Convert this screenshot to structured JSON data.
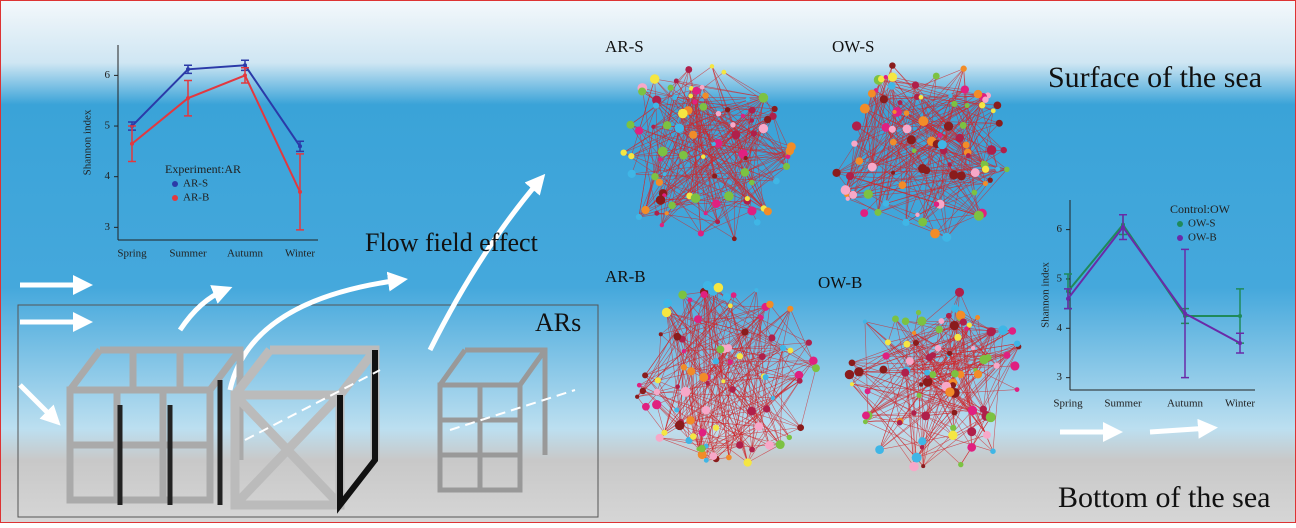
{
  "labels": {
    "surface": "Surface of the sea",
    "bottom": "Bottom of the sea",
    "flow": "Flow field effect",
    "ars": "ARs",
    "networks": [
      "AR-S",
      "OW-S",
      "AR-B",
      "OW-B"
    ]
  },
  "chart_data": [
    {
      "type": "line",
      "legend_title": "Experiment:AR",
      "ylabel": "Shannon index",
      "categories": [
        "Spring",
        "Summer",
        "Autumn",
        "Winter"
      ],
      "ylim": [
        2.75,
        6.6
      ],
      "yticks": [
        3,
        4,
        5,
        6
      ],
      "series": [
        {
          "name": "AR-S",
          "color": "#2b3aa8",
          "values": [
            5.0,
            6.12,
            6.2,
            4.6
          ],
          "errors": [
            0.08,
            0.08,
            0.1,
            0.1
          ]
        },
        {
          "name": "AR-B",
          "color": "#e2383f",
          "values": [
            4.65,
            5.55,
            6.0,
            3.7
          ],
          "errors": [
            0.35,
            0.35,
            0.15,
            0.75
          ]
        }
      ]
    },
    {
      "type": "line",
      "legend_title": "Control:OW",
      "ylabel": "Shannon index",
      "categories": [
        "Spring",
        "Summer",
        "Autumn",
        "Winter"
      ],
      "ylim": [
        2.75,
        6.6
      ],
      "yticks": [
        3,
        4,
        5,
        6
      ],
      "series": [
        {
          "name": "OW-S",
          "color": "#1f8a5a",
          "values": [
            4.75,
            6.1,
            4.25,
            4.25
          ],
          "errors": [
            0.35,
            0.2,
            0.15,
            0.55
          ]
        },
        {
          "name": "OW-B",
          "color": "#6a2aa8",
          "values": [
            4.6,
            6.05,
            4.3,
            3.7
          ],
          "errors": [
            0.2,
            0.25,
            1.3,
            0.2
          ]
        }
      ]
    }
  ]
}
